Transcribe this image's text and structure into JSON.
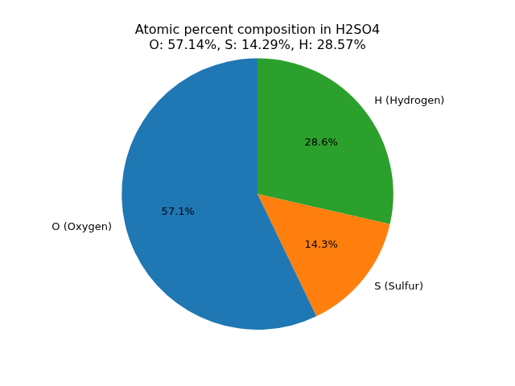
{
  "chart_data": {
    "type": "pie",
    "title": "Atomic percent composition in H2SO4",
    "subtitle": "O: 57.14%, S: 14.29%, H: 28.57%",
    "categories": [
      "O (Oxygen)",
      "S (Sulfur)",
      "H (Hydrogen)"
    ],
    "values": [
      57.14,
      14.29,
      28.57
    ],
    "value_labels": [
      "57.1%",
      "14.3%",
      "28.6%"
    ],
    "colors": [
      "#1f77b4",
      "#ff7f0e",
      "#2ca02c"
    ],
    "data_labels": true
  }
}
